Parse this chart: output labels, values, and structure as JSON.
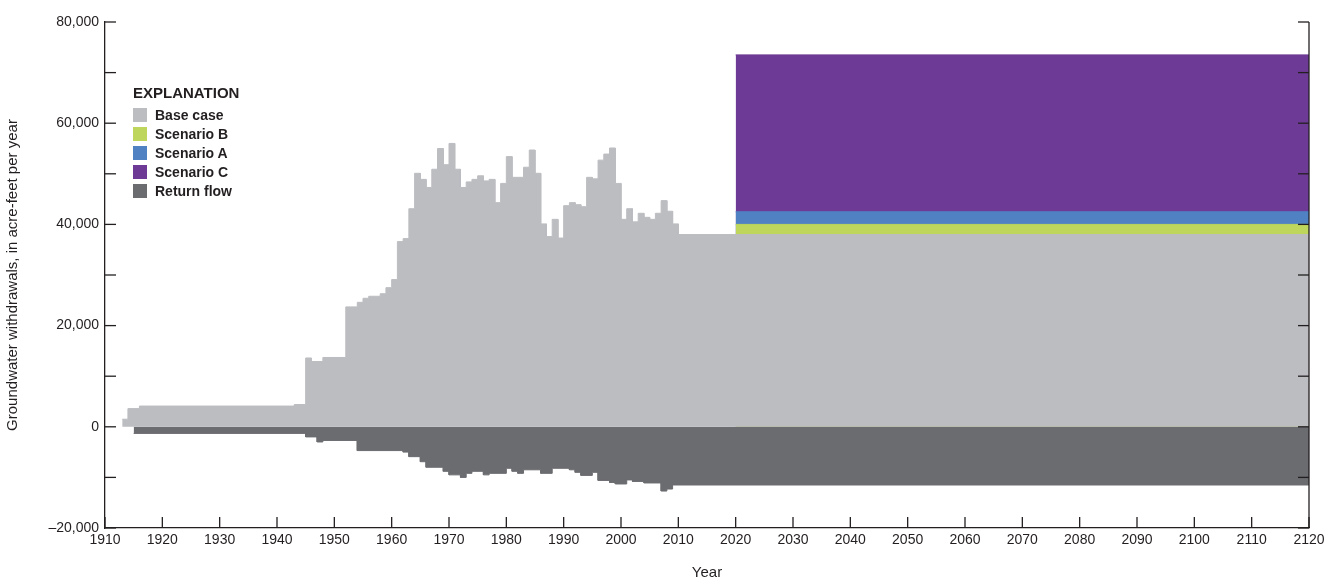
{
  "chart_data": {
    "type": "area",
    "xlabel": "Year",
    "ylabel": "Groundwater withdrawals, in acre-feet per year",
    "legend_title": "EXPLANATION",
    "legend": "top left",
    "grid": false,
    "xlim": [
      1910,
      2120
    ],
    "xticks": [
      1910,
      1920,
      1930,
      1940,
      1950,
      1960,
      1970,
      1980,
      1990,
      2000,
      2010,
      2020,
      2030,
      2040,
      2050,
      2060,
      2070,
      2080,
      2090,
      2100,
      2110,
      2120
    ],
    "ylim": [
      -20000,
      80000
    ],
    "yticks": [
      {
        "value": -20000,
        "label": "–20,000"
      },
      {
        "value": -10000,
        "label": null
      },
      0,
      {
        "value": 10000,
        "label": null
      },
      {
        "value": 20000,
        "label": "20,000"
      },
      {
        "value": 30000,
        "label": null
      },
      {
        "value": 40000,
        "label": "40,000"
      },
      {
        "value": 50000,
        "label": null
      },
      {
        "value": 60000,
        "label": "60,000"
      },
      {
        "value": 70000,
        "label": null
      },
      {
        "value": 80000,
        "label": "80,000"
      }
    ],
    "series": [
      {
        "name": "Base case",
        "color": "#bcbdc1",
        "x": [
          1913,
          1914,
          1914,
          1916,
          1916,
          1943,
          1943,
          1945,
          1945,
          1946,
          1946,
          1948,
          1948,
          1952,
          1952,
          1954,
          1954,
          1955,
          1955,
          1956,
          1956,
          1958,
          1958,
          1959,
          1959,
          1960,
          1960,
          1961,
          1961,
          1962,
          1962,
          1963,
          1963,
          1964,
          1964,
          1965,
          1965,
          1966,
          1966,
          1967,
          1967,
          1968,
          1968,
          1969,
          1969,
          1970,
          1970,
          1971,
          1971,
          1972,
          1972,
          1973,
          1973,
          1974,
          1974,
          1975,
          1975,
          1976,
          1976,
          1977,
          1977,
          1978,
          1978,
          1979,
          1979,
          1980,
          1980,
          1981,
          1981,
          1983,
          1983,
          1984,
          1984,
          1985,
          1985,
          1986,
          1986,
          1987,
          1987,
          1988,
          1988,
          1989,
          1989,
          1990,
          1990,
          1991,
          1991,
          1992,
          1992,
          1993,
          1993,
          1994,
          1994,
          1995,
          1995,
          1996,
          1996,
          1997,
          1997,
          1998,
          1998,
          1999,
          1999,
          2000,
          2000,
          2001,
          2001,
          2002,
          2002,
          2003,
          2003,
          2004,
          2004,
          2005,
          2005,
          2006,
          2006,
          2007,
          2007,
          2008,
          2008,
          2009,
          2009,
          2010,
          2010,
          2120
        ],
        "values": [
          1500,
          1500,
          3600,
          3600,
          4100,
          4100,
          4400,
          4400,
          13600,
          13600,
          12900,
          12900,
          13700,
          13700,
          23700,
          23700,
          24600,
          24600,
          25400,
          25400,
          25800,
          25800,
          26300,
          26300,
          27500,
          27500,
          29100,
          29100,
          36600,
          36600,
          37200,
          37200,
          43100,
          43100,
          50100,
          50100,
          48900,
          48900,
          47300,
          47300,
          50900,
          50900,
          55000,
          55000,
          51800,
          51800,
          56000,
          56000,
          50900,
          50900,
          47300,
          47300,
          48400,
          48400,
          48900,
          48900,
          49600,
          49600,
          48600,
          48600,
          48900,
          48900,
          44300,
          44300,
          48100,
          48100,
          53400,
          53400,
          49300,
          49300,
          51300,
          51300,
          54700,
          54700,
          50100,
          50100,
          40100,
          40100,
          37600,
          37600,
          41000,
          41000,
          37300,
          37300,
          43700,
          43700,
          44300,
          44300,
          43900,
          43900,
          43500,
          43500,
          49300,
          49300,
          49000,
          49000,
          52700,
          52700,
          53900,
          53900,
          55100,
          55100,
          48100,
          48100,
          41000,
          41000,
          43100,
          43100,
          40500,
          40500,
          42200,
          42200,
          41400,
          41400,
          41000,
          41000,
          42200,
          42200,
          44700,
          44700,
          42600,
          42600,
          40100,
          40100,
          38000,
          38000
        ]
      },
      {
        "name": "Scenario B",
        "color": "#bed65b",
        "x": [
          2020,
          2120
        ],
        "values": [
          40000,
          40000
        ]
      },
      {
        "name": "Scenario A",
        "color": "#4f81c3",
        "x": [
          2020,
          2120
        ],
        "values": [
          42500,
          42500
        ]
      },
      {
        "name": "Scenario C",
        "color": "#6d3a96",
        "x": [
          2020,
          2120
        ],
        "values": [
          73500,
          73500
        ]
      },
      {
        "name": "Return flow",
        "color": "#6b6c70",
        "x": [
          1915,
          1945,
          1945,
          1947,
          1947,
          1948,
          1948,
          1954,
          1954,
          1962,
          1962,
          1963,
          1963,
          1965,
          1965,
          1966,
          1966,
          1969,
          1969,
          1970,
          1970,
          1972,
          1972,
          1973,
          1973,
          1974,
          1974,
          1976,
          1976,
          1977,
          1977,
          1980,
          1980,
          1981,
          1981,
          1982,
          1982,
          1983,
          1983,
          1986,
          1986,
          1988,
          1988,
          1991,
          1991,
          1992,
          1992,
          1993,
          1993,
          1995,
          1995,
          1996,
          1996,
          1998,
          1998,
          1999,
          1999,
          2001,
          2001,
          2002,
          2002,
          2004,
          2004,
          2007,
          2007,
          2008,
          2008,
          2009,
          2009,
          2120
        ],
        "values": [
          -1300,
          -1300,
          -2000,
          -2000,
          -3000,
          -3000,
          -2700,
          -2700,
          -4700,
          -4700,
          -5000,
          -5000,
          -5900,
          -5900,
          -6900,
          -6900,
          -8000,
          -8000,
          -8800,
          -8800,
          -9500,
          -9500,
          -10000,
          -10000,
          -9200,
          -9200,
          -8800,
          -8800,
          -9500,
          -9500,
          -9200,
          -9200,
          -8200,
          -8200,
          -8800,
          -8800,
          -9200,
          -9200,
          -8500,
          -8500,
          -9200,
          -9200,
          -8200,
          -8200,
          -8500,
          -8500,
          -9000,
          -9000,
          -9600,
          -9600,
          -9000,
          -9000,
          -10600,
          -10600,
          -11000,
          -11000,
          -11300,
          -11300,
          -10500,
          -10500,
          -10800,
          -10800,
          -11100,
          -11100,
          -12700,
          -12700,
          -12300,
          -12300,
          -11500,
          -11500
        ]
      }
    ]
  }
}
